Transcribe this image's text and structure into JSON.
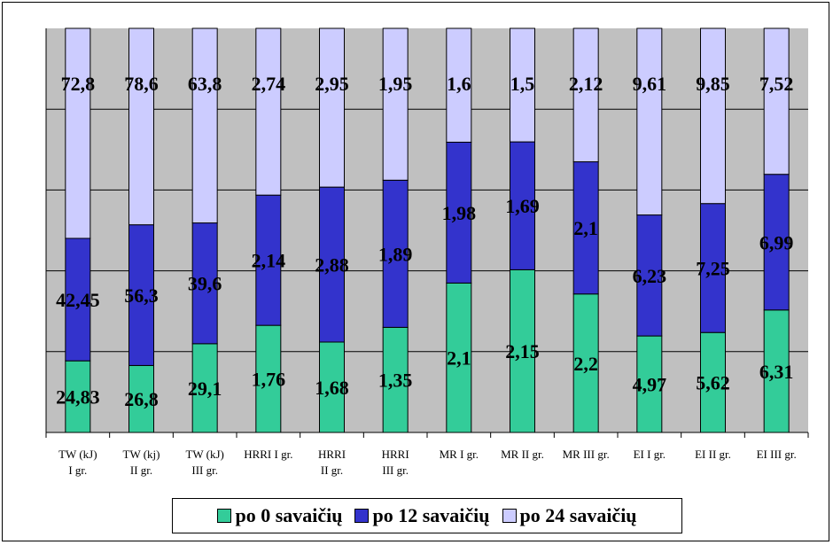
{
  "chart_data": {
    "type": "bar",
    "stacked": true,
    "normalized_to_100_percent": true,
    "grid": true,
    "legend_position": "bottom",
    "categories": [
      [
        "TW (kJ)",
        "I gr."
      ],
      [
        "TW (kj)",
        "II gr."
      ],
      [
        "TW (kJ)",
        "III gr."
      ],
      [
        "HRRI I gr."
      ],
      [
        "HRRI",
        "II gr."
      ],
      [
        "HRRI",
        "III gr."
      ],
      [
        "MR I gr."
      ],
      [
        "MR II gr."
      ],
      [
        "MR III gr."
      ],
      [
        "EI I gr."
      ],
      [
        "EI II gr."
      ],
      [
        "EI III gr."
      ]
    ],
    "series": [
      {
        "name": "po 0 savaičių",
        "color": "#33cc99",
        "values": [
          24.83,
          26.8,
          29.1,
          1.76,
          1.68,
          1.35,
          2.1,
          2.15,
          2.2,
          4.97,
          5.62,
          6.31
        ],
        "labels": [
          "24,83",
          "26,8",
          "29,1",
          "1,76",
          "1,68",
          "1,35",
          "2,1",
          "2,15",
          "2,2",
          "4,97",
          "5,62",
          "6,31"
        ]
      },
      {
        "name": "po 12 savaičių",
        "color": "#3333cc",
        "values": [
          42.45,
          56.3,
          39.6,
          2.14,
          2.88,
          1.89,
          1.98,
          1.69,
          2.1,
          6.23,
          7.25,
          6.99
        ],
        "labels": [
          "42,45",
          "56,3",
          "39,6",
          "2,14",
          "2,88",
          "1,89",
          "1,98",
          "1,69",
          "2,1",
          "6,23",
          "7,25",
          "6,99"
        ]
      },
      {
        "name": "po 24 savaičių",
        "color": "#ccccff",
        "values": [
          72.8,
          78.6,
          63.8,
          2.74,
          2.95,
          1.95,
          1.6,
          1.5,
          2.12,
          9.61,
          9.85,
          7.52
        ],
        "labels": [
          "72,8",
          "78,6",
          "63,8",
          "2,74",
          "2,95",
          "1,95",
          "1,6",
          "1,5",
          "2,12",
          "9,61",
          "9,85",
          "7,52"
        ]
      }
    ],
    "colors": {
      "plot_background": "#c0c0c0",
      "gridline": "#000000"
    }
  }
}
